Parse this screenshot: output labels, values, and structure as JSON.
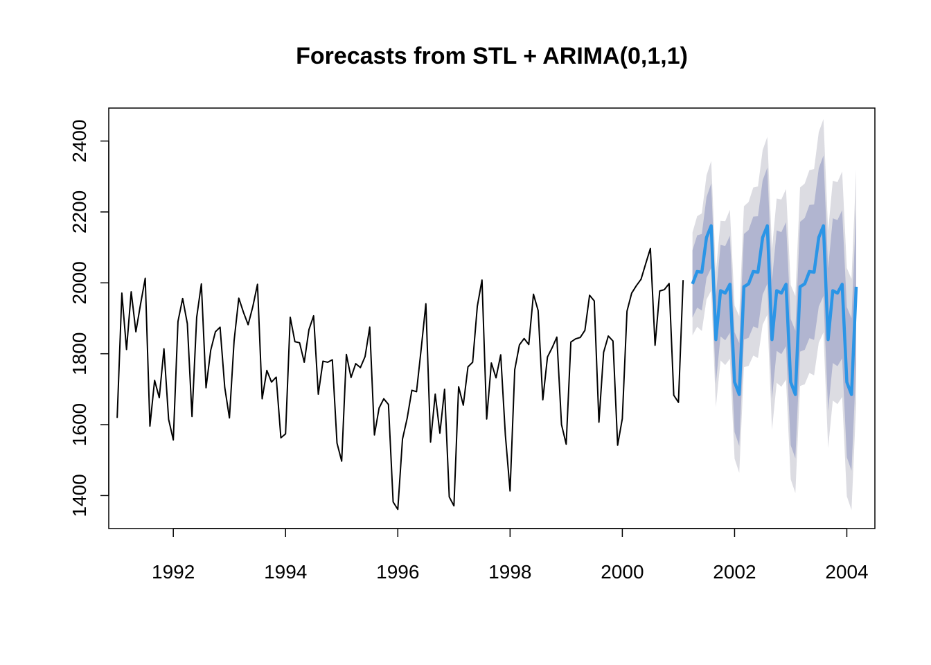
{
  "chart_data": {
    "type": "line",
    "title": "Forecasts from STL +  ARIMA(0,1,1)",
    "xlabel": "",
    "ylabel": "",
    "xlim": [
      1990.85,
      2004.5
    ],
    "ylim": [
      1307,
      2493
    ],
    "x_ticks": [
      1992,
      1994,
      1996,
      1998,
      2000,
      2002,
      2004
    ],
    "y_ticks": [
      1400,
      1600,
      1800,
      2000,
      2200,
      2400
    ],
    "grid": false,
    "legend": "none",
    "colors": {
      "history": "#000000",
      "forecast": "#2b95e6",
      "band80": "#b1b5d0",
      "band95": "#dcdce2"
    },
    "history": {
      "start": 1991.0,
      "frequency": 12,
      "values": [
        1619,
        1971,
        1812,
        1975,
        1862,
        1940,
        2013,
        1596,
        1725,
        1676,
        1814,
        1615,
        1557,
        1891,
        1956,
        1885,
        1623,
        1903,
        1997,
        1704,
        1810,
        1862,
        1875,
        1705,
        1619,
        1837,
        1957,
        1917,
        1882,
        1933,
        1996,
        1673,
        1753,
        1720,
        1734,
        1563,
        1574,
        1903,
        1834,
        1831,
        1776,
        1868,
        1907,
        1686,
        1779,
        1776,
        1783,
        1548,
        1497,
        1798,
        1733,
        1772,
        1761,
        1792,
        1875,
        1571,
        1647,
        1673,
        1657,
        1382,
        1361,
        1559,
        1618,
        1697,
        1693,
        1814,
        1941,
        1551,
        1686,
        1576,
        1700,
        1396,
        1371,
        1707,
        1655,
        1763,
        1776,
        1934,
        2008,
        1616,
        1774,
        1732,
        1797,
        1570,
        1413,
        1755,
        1825,
        1843,
        1826,
        1968,
        1922,
        1670,
        1791,
        1817,
        1847,
        1600,
        1545,
        1833,
        1842,
        1846,
        1866,
        1965,
        1949,
        1607,
        1804,
        1850,
        1836,
        1542,
        1617,
        1920,
        1971,
        1992,
        2010,
        2054,
        2097,
        1824,
        1977,
        1981,
        1998,
        1683,
        1663,
        2008
      ]
    },
    "forecast": {
      "start": 1991.0,
      "frequency": 12,
      "start_index": 123,
      "mean": [
        1997,
        2032,
        2030,
        2128,
        2161,
        1840,
        1978,
        1971,
        1996,
        1720,
        1685,
        1989,
        1997,
        2032,
        2030,
        2128,
        2161,
        1840,
        1978,
        1971,
        1996,
        1720,
        1685,
        1989,
        1997,
        2032,
        2030,
        2128,
        2161,
        1840,
        1978,
        1971,
        1996,
        1720,
        1685,
        1989
      ],
      "lo80": [
        1902,
        1930,
        1922,
        2014,
        2042,
        1716,
        1849,
        1838,
        1859,
        1579,
        1540,
        1840,
        1845,
        1877,
        1872,
        1967,
        1997,
        1673,
        1808,
        1799,
        1821,
        1542,
        1505,
        1806,
        1811,
        1844,
        1839,
        1933,
        1963,
        1639,
        1774,
        1765,
        1787,
        1508,
        1470,
        1771
      ],
      "hi80": [
        2092,
        2134,
        2138,
        2242,
        2280,
        1964,
        2107,
        2104,
        2133,
        1861,
        1830,
        2138,
        2149,
        2187,
        2188,
        2289,
        2325,
        2007,
        2148,
        2143,
        2171,
        1898,
        1865,
        2172,
        2183,
        2220,
        2221,
        2323,
        2359,
        2041,
        2182,
        2177,
        2205,
        1932,
        1900,
        2207
      ],
      "lo95": [
        1852,
        1876,
        1864,
        1953,
        1978,
        1650,
        1781,
        1768,
        1786,
        1504,
        1464,
        1762,
        1766,
        1795,
        1788,
        1882,
        1910,
        1585,
        1718,
        1707,
        1727,
        1446,
        1407,
        1709,
        1714,
        1746,
        1739,
        1831,
        1860,
        1534,
        1668,
        1658,
        1678,
        1398,
        1359,
        1660
      ],
      "hi95": [
        2142,
        2188,
        2196,
        2303,
        2344,
        2030,
        2175,
        2174,
        2206,
        1936,
        1906,
        2216,
        2228,
        2269,
        2272,
        2374,
        2412,
        2095,
        2238,
        2235,
        2265,
        1994,
        1963,
        2269,
        2280,
        2318,
        2321,
        2425,
        2462,
        2146,
        2288,
        2284,
        2314,
        2042,
        2011,
        2318
      ]
    }
  }
}
